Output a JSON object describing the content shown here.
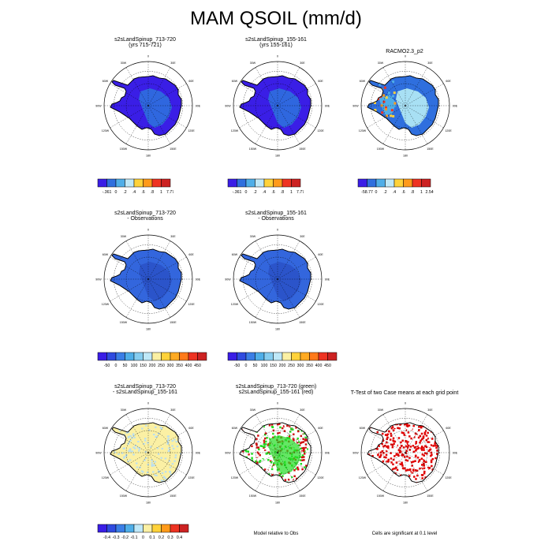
{
  "figure": {
    "title": "MAM QSOIL (mm/d)"
  },
  "panels": [
    {
      "id": "r1c1",
      "title1": "s2sLandSpinup_713-720",
      "title2": "(yrs 715-721)",
      "fill": "#3a1ee6",
      "accent": "#2f6fde",
      "scheme": "model"
    },
    {
      "id": "r1c2",
      "title1": "s2sLandSpinup_155-161",
      "title2": "(yrs 155-161)",
      "fill": "#3a1ee6",
      "accent": "#2f6fde",
      "scheme": "model"
    },
    {
      "id": "r1c3",
      "title1": "RACMO2.3_p2",
      "title2": "",
      "fill": "#2f6fde",
      "accent": "#a8e0f4",
      "scheme": "obs"
    },
    {
      "id": "r2c1",
      "title1": "s2sLandSpinup_713-720",
      "title2": "- Observations",
      "fill": "#3366dd",
      "accent": "#2a52c8",
      "scheme": "diff"
    },
    {
      "id": "r2c2",
      "title1": "s2sLandSpinup_155-161",
      "title2": "- Observations",
      "fill": "#3366dd",
      "accent": "#2a52c8",
      "scheme": "diff"
    },
    {
      "id": "r3c1",
      "title1": "s2sLandSpinup_713-720",
      "title2": "- s2sLandSpinup_155-161",
      "fill": "#fbf0a4",
      "accent": "#b9def0",
      "scheme": "mdiff"
    },
    {
      "id": "r3c2",
      "title1": "s2sLandSpinup_713-720 (green)",
      "title2": "s2sLandSpinup_155-161 (red)",
      "fill": "#ffffff",
      "accent": "#22dd22",
      "scheme": "rel"
    },
    {
      "id": "r3c3",
      "title1": "T-Test of two Case means at each grid point",
      "title2": "",
      "fill": "#ffffff",
      "accent": "#e00000",
      "scheme": "ttest"
    }
  ],
  "longitudes": [
    "0",
    "30E",
    "60E",
    "90E",
    "120E",
    "150E",
    "180",
    "150W",
    "120W",
    "90W",
    "60W",
    "30W"
  ],
  "colorbars": {
    "model": {
      "colors": [
        "#3a1ee6",
        "#2f6fde",
        "#4faee8",
        "#bfe8f8",
        "#ffd23a",
        "#ff9a1a",
        "#ee3322",
        "#cc2222"
      ],
      "labels": [
        "-.361",
        "0",
        ".2",
        ".4",
        ".6",
        ".8",
        "1",
        "7.77"
      ]
    },
    "obs": {
      "colors": [
        "#3a1ee6",
        "#2f6fde",
        "#4faee8",
        "#bfe8f8",
        "#ffd23a",
        "#ff9a1a",
        "#ee3322",
        "#cc2222"
      ],
      "labels": [
        "-58.77",
        "0",
        ".2",
        ".4",
        ".6",
        ".8",
        "1",
        "2.549"
      ]
    },
    "diff": {
      "colors": [
        "#3a1ee6",
        "#2f4be0",
        "#3a7ee6",
        "#4faee8",
        "#86cdf0",
        "#bfe8f8",
        "#fbf0a4",
        "#ffd23a",
        "#ffaa22",
        "#ff7a1a",
        "#ee3322",
        "#cc2222"
      ],
      "labels": [
        "-50",
        "0",
        "50",
        "100",
        "150",
        "200",
        "250",
        "300",
        "350",
        "400",
        "450"
      ]
    },
    "mdiff": {
      "colors": [
        "#3a1ee6",
        "#2f4be0",
        "#3a7ee6",
        "#4faee8",
        "#bfe8f8",
        "#fbf0a4",
        "#ffd23a",
        "#ff9a1a",
        "#ee3322",
        "#cc2222"
      ],
      "labels": [
        "-0.4",
        "-0.3",
        "-0.2",
        "-0.1",
        "0",
        "0.1",
        "0.2",
        "0.3",
        "0.4"
      ]
    }
  },
  "notes": {
    "rel": "Model relative to Obs",
    "ttest": "Cells are significant at 0.1 level"
  }
}
